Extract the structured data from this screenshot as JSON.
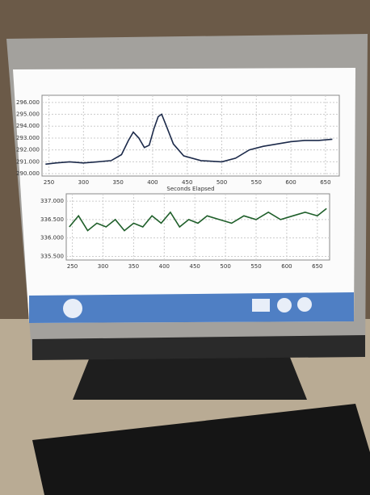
{
  "chart_data": [
    {
      "type": "line",
      "xlabel": "Seconds Elapsed",
      "x": [
        245,
        260,
        280,
        300,
        320,
        340,
        355,
        365,
        372,
        380,
        388,
        395,
        402,
        408,
        413,
        420,
        430,
        445,
        470,
        500,
        520,
        540,
        560,
        580,
        600,
        620,
        640,
        660
      ],
      "series": [
        {
          "values": [
            290.8,
            290.9,
            291.0,
            290.9,
            291.0,
            291.1,
            291.6,
            292.8,
            293.5,
            293.0,
            292.2,
            292.4,
            293.8,
            294.8,
            295.0,
            294.0,
            292.5,
            291.5,
            291.1,
            291.0,
            291.3,
            292.0,
            292.3,
            292.5,
            292.7,
            292.8,
            292.8,
            292.9
          ],
          "color": "#1c2a4a"
        }
      ],
      "xlim": [
        240,
        670
      ],
      "ylim": [
        289.8,
        296.6
      ],
      "xticks": [
        250,
        300,
        350,
        400,
        450,
        500,
        550,
        600,
        650
      ],
      "yticks": [
        {
          "value": 290,
          "label": "290.000"
        },
        {
          "value": 291,
          "label": "291.000"
        },
        {
          "value": 292,
          "label": "292.000"
        },
        {
          "value": 293,
          "label": "293.000"
        },
        {
          "value": 294,
          "label": "294.000"
        },
        {
          "value": 295,
          "label": "295.000"
        },
        {
          "value": 296,
          "label": "296.000"
        }
      ],
      "grid": true
    },
    {
      "type": "line",
      "x": [
        245,
        260,
        275,
        290,
        305,
        320,
        335,
        350,
        365,
        380,
        395,
        410,
        425,
        440,
        455,
        470,
        490,
        510,
        530,
        550,
        570,
        590,
        610,
        630,
        650,
        665
      ],
      "series": [
        {
          "values": [
            336.3,
            336.6,
            336.2,
            336.4,
            336.3,
            336.5,
            336.2,
            336.4,
            336.3,
            336.6,
            336.4,
            336.7,
            336.3,
            336.5,
            336.4,
            336.6,
            336.5,
            336.4,
            336.6,
            336.5,
            336.7,
            336.5,
            336.6,
            336.7,
            336.6,
            336.8
          ],
          "color": "#1f5f2a"
        }
      ],
      "xlim": [
        240,
        670
      ],
      "ylim": [
        335.4,
        337.2
      ],
      "xticks": [
        250,
        300,
        350,
        400,
        450,
        500,
        550,
        600,
        650
      ],
      "yticks": [
        {
          "value": 335.5,
          "label": "335.500"
        },
        {
          "value": 336,
          "label": "336.000"
        },
        {
          "value": 336.5,
          "label": "336.500"
        },
        {
          "value": 337,
          "label": "337.000"
        }
      ],
      "grid": true
    }
  ]
}
